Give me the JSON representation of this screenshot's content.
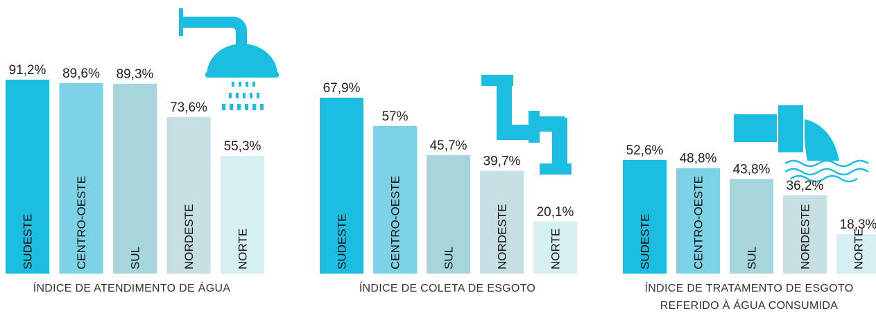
{
  "chart_data": [
    {
      "type": "bar",
      "title": "ÍNDICE DE ATENDIMENTO DE ÁGUA",
      "categories": [
        "SUDESTE",
        "CENTRO-OESTE",
        "SUL",
        "NORDESTE",
        "NORTE"
      ],
      "values": [
        91.2,
        89.6,
        89.3,
        73.6,
        55.3
      ],
      "value_labels": [
        "91,2%",
        "89,6%",
        "89,3%",
        "73,6%",
        "55,3%"
      ],
      "colors": [
        "#1bbde0",
        "#7dd2e8",
        "#a6d6db",
        "#c6dfe3",
        "#d6eff1"
      ]
    },
    {
      "type": "bar",
      "title": "ÍNDICE DE COLETA DE ESGOTO",
      "categories": [
        "SUDESTE",
        "CENTRO-OESTE",
        "SUL",
        "NORDESTE",
        "NORTE"
      ],
      "values": [
        67.9,
        57,
        45.7,
        39.7,
        20.1
      ],
      "value_labels": [
        "67,9%",
        "57%",
        "45,7%",
        "39,7%",
        "20,1%"
      ],
      "colors": [
        "#1bbde0",
        "#7dd2e8",
        "#a6d6db",
        "#c6dfe3",
        "#d6eff1"
      ]
    },
    {
      "type": "bar",
      "title": "ÍNDICE DE TRATAMENTO DE ESGOTO REFERIDO À ÁGUA CONSUMIDA",
      "categories": [
        "SUDESTE",
        "CENTRO-OESTE",
        "SUL",
        "NORDESTE",
        "NORTE"
      ],
      "values": [
        52.6,
        48.8,
        43.8,
        36.2,
        18.3
      ],
      "value_labels": [
        "52,6%",
        "48,8%",
        "43,8%",
        "36,2%",
        "18,3%"
      ],
      "colors": [
        "#1bbde0",
        "#7dd2e8",
        "#a6d6db",
        "#c6dfe3",
        "#d6eff1"
      ]
    }
  ]
}
